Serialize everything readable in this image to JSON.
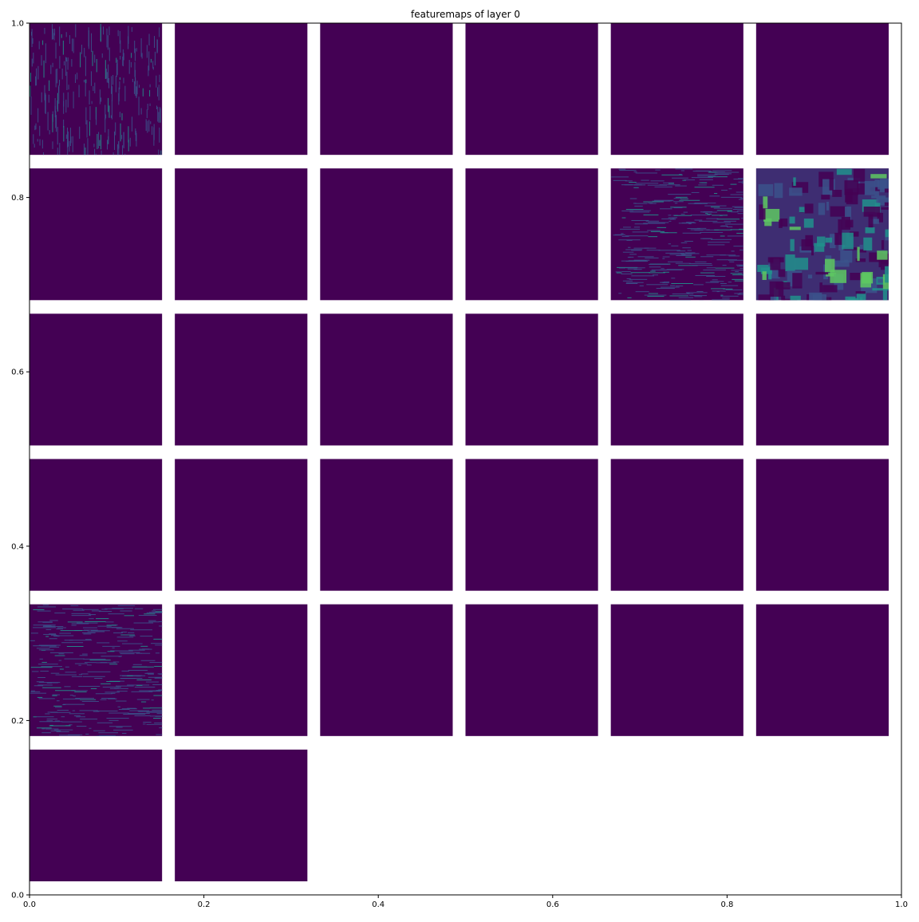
{
  "chart_data": {
    "type": "heatmap",
    "title": "featuremaps of layer 0",
    "xlabel": "",
    "ylabel": "",
    "xlim": [
      0.0,
      1.0
    ],
    "ylim": [
      0.0,
      1.0
    ],
    "xticks": [
      "0.0",
      "0.2",
      "0.4",
      "0.6",
      "0.8",
      "1.0"
    ],
    "yticks": [
      "0.0",
      "0.2",
      "0.4",
      "0.6",
      "0.8",
      "1.0"
    ],
    "grid": false,
    "colormap": "viridis",
    "grid_layout": {
      "rows": 6,
      "cols": 6
    },
    "feature_maps": [
      {
        "index": 0,
        "pattern": "vertical-edges"
      },
      {
        "index": 1,
        "pattern": "inactive"
      },
      {
        "index": 2,
        "pattern": "inactive"
      },
      {
        "index": 3,
        "pattern": "inactive"
      },
      {
        "index": 4,
        "pattern": "inactive"
      },
      {
        "index": 5,
        "pattern": "inactive"
      },
      {
        "index": 6,
        "pattern": "inactive"
      },
      {
        "index": 7,
        "pattern": "inactive"
      },
      {
        "index": 8,
        "pattern": "inactive"
      },
      {
        "index": 9,
        "pattern": "inactive"
      },
      {
        "index": 10,
        "pattern": "horizontal-edges"
      },
      {
        "index": 11,
        "pattern": "texture"
      },
      {
        "index": 12,
        "pattern": "inactive"
      },
      {
        "index": 13,
        "pattern": "inactive"
      },
      {
        "index": 14,
        "pattern": "inactive"
      },
      {
        "index": 15,
        "pattern": "inactive"
      },
      {
        "index": 16,
        "pattern": "inactive"
      },
      {
        "index": 17,
        "pattern": "inactive"
      },
      {
        "index": 18,
        "pattern": "inactive"
      },
      {
        "index": 19,
        "pattern": "inactive"
      },
      {
        "index": 20,
        "pattern": "inactive"
      },
      {
        "index": 21,
        "pattern": "inactive"
      },
      {
        "index": 22,
        "pattern": "inactive"
      },
      {
        "index": 23,
        "pattern": "inactive"
      },
      {
        "index": 24,
        "pattern": "horizontal-edges"
      },
      {
        "index": 25,
        "pattern": "inactive"
      },
      {
        "index": 26,
        "pattern": "inactive"
      },
      {
        "index": 27,
        "pattern": "inactive"
      },
      {
        "index": 28,
        "pattern": "inactive"
      },
      {
        "index": 29,
        "pattern": "inactive"
      },
      {
        "index": 30,
        "pattern": "inactive"
      },
      {
        "index": 31,
        "pattern": "inactive"
      }
    ],
    "colors": {
      "low": "#440154",
      "mid": "#3b528b",
      "cyan": "#21918c",
      "high": "#5ec962",
      "axis": "#000000",
      "background": "#ffffff"
    }
  }
}
